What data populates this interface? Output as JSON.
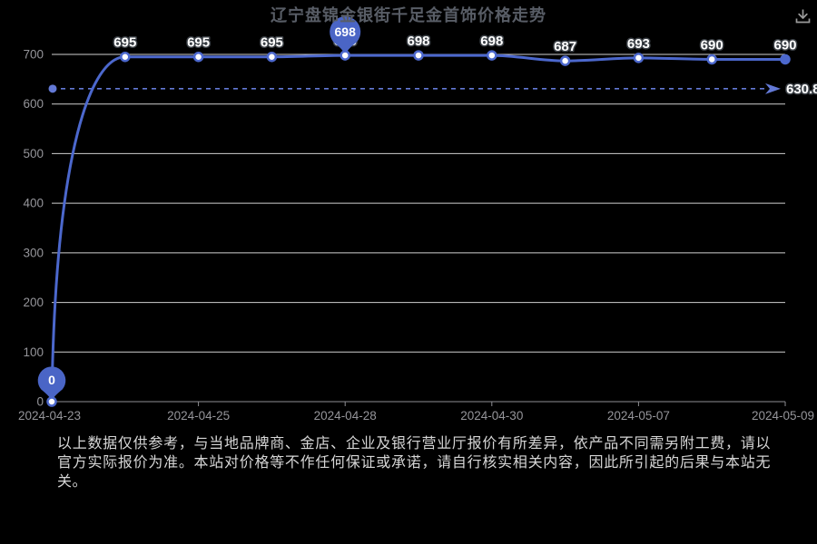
{
  "header": {
    "title": "辽宁盘锦金银街千足金首饰价格走势"
  },
  "toolbar": {
    "download_icon": "download-icon"
  },
  "chart_data": {
    "type": "line",
    "title": "辽宁盘锦金银街千足金首饰价格走势",
    "x_tick_labels": [
      "2024-04-23",
      "2024-04-25",
      "2024-04-28",
      "2024-04-30",
      "2024-05-07",
      "2024-05-09"
    ],
    "x_tick_point_indices": [
      0,
      2,
      4,
      6,
      8,
      10
    ],
    "values": [
      0,
      695,
      695,
      695,
      698,
      698,
      698,
      687,
      693,
      690,
      690
    ],
    "point_labels": [
      "",
      "695",
      "695",
      "695",
      "698",
      "698",
      "698",
      "687",
      "693",
      "690",
      "690"
    ],
    "pins": [
      {
        "point_index": 0,
        "label": "0"
      },
      {
        "point_index": 4,
        "label": "698"
      }
    ],
    "mark_line": {
      "value": 630.8,
      "label": "630.8"
    },
    "y_ticks": [
      0,
      100,
      200,
      300,
      400,
      500,
      600,
      700
    ],
    "ylim": [
      0,
      700
    ],
    "grid": true,
    "legend_position": "none",
    "ylabel": "",
    "xlabel": ""
  },
  "disclaimer": {
    "text": "以上数据仅供参考，与当地品牌商、金店、企业及银行营业厅报价有所差异，依产品不同需另附工费，请以官方实际报价为准。本站对价格等不作任何保证或承诺，请自行核实相关内容，因此所引起的后果与本站无关。"
  },
  "colors": {
    "background": "#000000",
    "line": "#4c68cd",
    "marker_fill": "#ffffff",
    "pin": "#4a65c6",
    "dash_line": "#6379d6",
    "grid": "#cfcfcf",
    "axis": "#8e8e93",
    "tick_label": "#95959a",
    "data_label": "#ffffff",
    "data_label_outline": "#3b4046",
    "title": "#585d66",
    "disclaimer_text": "#d6d6d6",
    "icon": "#9b9b9b"
  }
}
